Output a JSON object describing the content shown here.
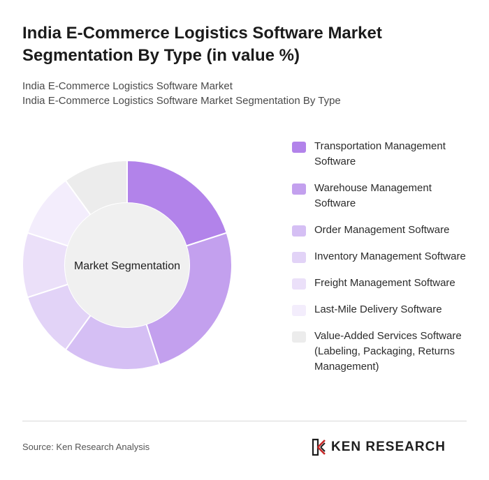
{
  "title": "India E-Commerce Logistics Software Market Segmentation By Type (in value %)",
  "subtitles": [
    "India E-Commerce Logistics Software Market",
    "India E-Commerce Logistics Software Market Segmentation By Type"
  ],
  "source": "Source: Ken Research Analysis",
  "logo": {
    "text": "KEN RESEARCH",
    "icon": "ken-research-logo-icon"
  },
  "chart_data": {
    "type": "pie",
    "donut": true,
    "center_label": "Market Segmentation",
    "legend_position": "right",
    "categories": [
      "Transportation Management Software",
      "Warehouse Management Software",
      "Order Management Software",
      "Inventory Management Software",
      "Freight Management Software",
      "Last-Mile Delivery Software",
      "Value-Added Services Software (Labeling, Packaging, Returns Management)"
    ],
    "values": [
      20,
      25,
      15,
      10,
      10,
      10,
      10
    ],
    "colors": [
      "#b283ea",
      "#c3a0ee",
      "#d5bff4",
      "#e2d3f7",
      "#ebe0f9",
      "#f3edfc",
      "#ececec"
    ]
  }
}
